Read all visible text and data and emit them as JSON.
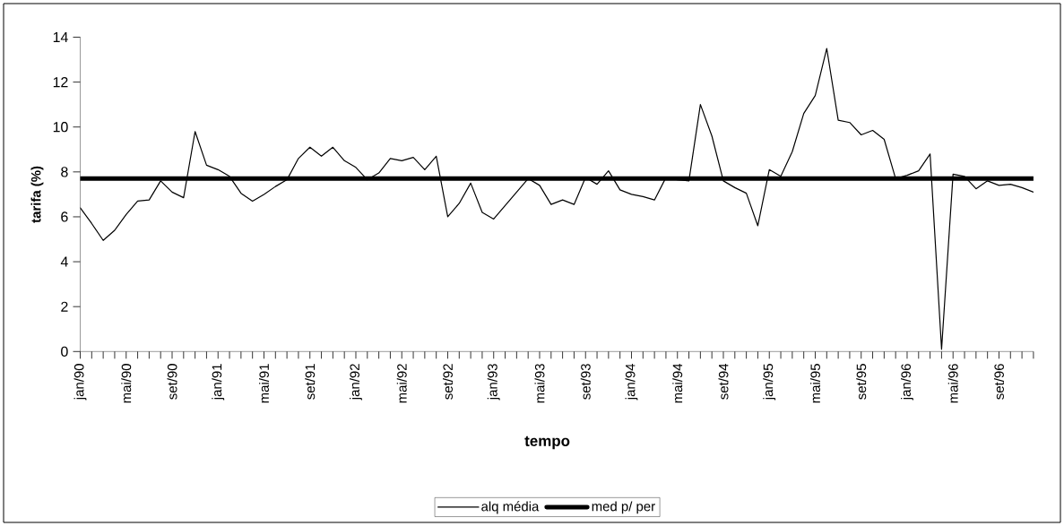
{
  "chart_data": {
    "type": "line",
    "xlabel": "tempo",
    "ylabel": "tarifa (%)",
    "categories": [
      "jan/90",
      null,
      null,
      null,
      "mai/90",
      null,
      null,
      null,
      "set/90",
      null,
      null,
      null,
      "jan/91",
      null,
      null,
      null,
      "mai/91",
      null,
      null,
      null,
      "set/91",
      null,
      null,
      null,
      "jan/92",
      null,
      null,
      null,
      "mai/92",
      null,
      null,
      null,
      "set/92",
      null,
      null,
      null,
      "jan/93",
      null,
      null,
      null,
      "mai/93",
      null,
      null,
      null,
      "set/93",
      null,
      null,
      null,
      "jan/94",
      null,
      null,
      null,
      "mai/94",
      null,
      null,
      null,
      "set/94",
      null,
      null,
      null,
      "jan/95",
      null,
      null,
      null,
      "mai/95",
      null,
      null,
      null,
      "set/95",
      null,
      null,
      null,
      "jan/96",
      null,
      null,
      null,
      "mai/96",
      null,
      null,
      null,
      "set/96",
      null,
      null,
      null
    ],
    "series": [
      {
        "name": "alq média",
        "color": "#000000",
        "values": [
          6.4,
          5.7,
          4.95,
          5.4,
          6.1,
          6.7,
          6.75,
          7.6,
          7.1,
          6.85,
          9.8,
          8.3,
          8.1,
          7.8,
          7.05,
          6.7,
          7.0,
          7.35,
          7.65,
          8.6,
          9.1,
          8.7,
          9.1,
          8.5,
          8.2,
          7.65,
          7.95,
          8.6,
          8.5,
          8.65,
          8.1,
          8.7,
          6.0,
          6.6,
          7.5,
          6.2,
          5.9,
          6.5,
          7.1,
          7.7,
          7.4,
          6.55,
          6.75,
          6.55,
          7.75,
          7.45,
          8.05,
          7.2,
          7.0,
          6.9,
          6.75,
          7.75,
          7.65,
          7.6,
          11.0,
          9.6,
          7.6,
          7.3,
          7.05,
          5.6,
          8.1,
          7.8,
          8.9,
          10.6,
          11.4,
          13.5,
          10.3,
          10.2,
          9.65,
          9.85,
          9.45,
          7.7,
          7.85,
          8.05,
          8.8,
          0.1,
          7.9,
          7.8,
          7.25,
          7.6,
          7.4,
          7.45,
          7.3,
          7.1
        ]
      },
      {
        "name": "med p/ per",
        "color": "#000000",
        "values": [
          7.7,
          7.7,
          7.7,
          7.7,
          7.7,
          7.7,
          7.7,
          7.7,
          7.7,
          7.7,
          7.7,
          7.7,
          7.7,
          7.7,
          7.7,
          7.7,
          7.7,
          7.7,
          7.7,
          7.7,
          7.7,
          7.7,
          7.7,
          7.7,
          7.7,
          7.7,
          7.7,
          7.7,
          7.7,
          7.7,
          7.7,
          7.7,
          7.7,
          7.7,
          7.7,
          7.7,
          7.7,
          7.7,
          7.7,
          7.7,
          7.7,
          7.7,
          7.7,
          7.7,
          7.7,
          7.7,
          7.7,
          7.7,
          7.7,
          7.7,
          7.7,
          7.7,
          7.7,
          7.7,
          7.7,
          7.7,
          7.7,
          7.7,
          7.7,
          7.7,
          7.7,
          7.7,
          7.7,
          7.7,
          7.7,
          7.7,
          7.7,
          7.7,
          7.7,
          7.7,
          7.7,
          7.7,
          7.7,
          7.7,
          7.7,
          7.7,
          7.7,
          7.7,
          7.7,
          7.7,
          7.7,
          7.7,
          7.7,
          7.7
        ]
      }
    ],
    "ylim": [
      0,
      14
    ],
    "yticks": [
      0,
      2,
      4,
      6,
      8,
      10,
      12,
      14
    ],
    "grid": false,
    "legend": "bottom",
    "marker": "none",
    "line_style": "solid"
  }
}
